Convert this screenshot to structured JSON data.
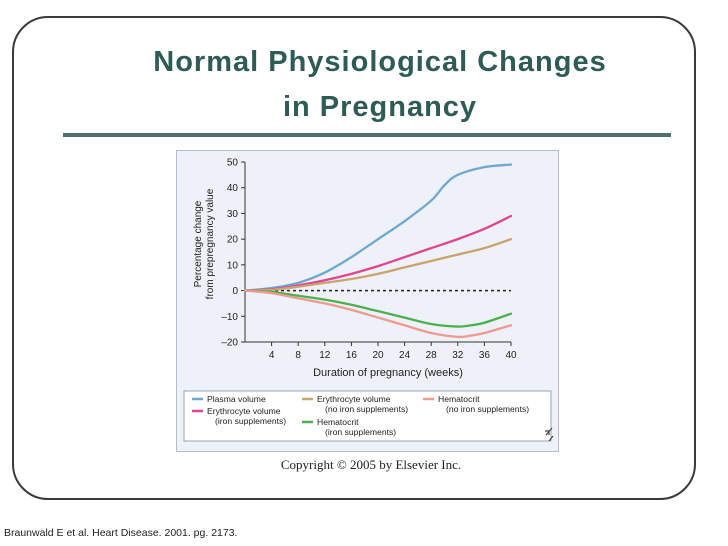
{
  "slide": {
    "title_line1": "Normal Physiological Changes",
    "title_line2": "in Pregnancy",
    "copyright": "Copyright © 2005 by Elsevier Inc.",
    "citation": "Braunwald E et al. Heart Disease. 2001. pg. 2173."
  },
  "chart_data": {
    "type": "line",
    "title": "",
    "xlabel": "Duration of pregnancy (weeks)",
    "ylabel_line1": "Percentage change",
    "ylabel_line2": "from prepregnancy value",
    "xlim": [
      0,
      40
    ],
    "ylim": [
      -20,
      50
    ],
    "xticks": [
      4,
      8,
      12,
      16,
      20,
      24,
      28,
      32,
      36,
      40
    ],
    "xtick_labels": [
      "4",
      "8",
      "12",
      "16",
      "20",
      "24",
      "28",
      "32",
      "36",
      "40"
    ],
    "yticks": [
      50,
      40,
      30,
      20,
      10,
      0,
      -10,
      -20
    ],
    "ytick_labels": [
      "50",
      "40",
      "30",
      "20",
      "10",
      "0",
      "–10",
      "–20"
    ],
    "reference_line": 0,
    "series": [
      {
        "key": "plasma",
        "name": "Plasma volume",
        "color": "#6fa8cf",
        "x": [
          0,
          4,
          8,
          12,
          16,
          20,
          24,
          28,
          30,
          32,
          36,
          40
        ],
        "y": [
          0,
          1,
          3,
          7,
          13,
          20,
          27,
          35,
          41,
          45,
          48,
          49
        ]
      },
      {
        "key": "rbc_iron",
        "name": "Erythrocyte volume",
        "sub": "(iron supplements)",
        "color": "#e0458f",
        "x": [
          0,
          4,
          8,
          12,
          16,
          20,
          24,
          28,
          32,
          36,
          40
        ],
        "y": [
          0,
          0.5,
          2,
          4,
          6.5,
          9.5,
          13,
          16.5,
          20,
          24,
          29
        ]
      },
      {
        "key": "rbc_noiron",
        "name": "Erythrocyte volume",
        "sub": "(no iron supplements)",
        "color": "#c9a46f",
        "x": [
          0,
          4,
          8,
          12,
          16,
          20,
          24,
          28,
          32,
          36,
          40
        ],
        "y": [
          0,
          0.3,
          1.5,
          3,
          4.5,
          6.5,
          9,
          11.5,
          14,
          16.5,
          20
        ]
      },
      {
        "key": "hct_iron",
        "name": "Hematocrit",
        "sub": "(iron supplements)",
        "color": "#4caf50",
        "x": [
          0,
          4,
          8,
          12,
          16,
          20,
          24,
          28,
          32,
          34,
          36,
          40
        ],
        "y": [
          0,
          -0.5,
          -2,
          -3.5,
          -5.5,
          -8,
          -10.5,
          -13,
          -14,
          -13.5,
          -12.5,
          -9
        ]
      },
      {
        "key": "hct_noiron",
        "name": "Hematocrit",
        "sub": "(no iron supplements)",
        "color": "#ef9a8e",
        "x": [
          0,
          4,
          8,
          12,
          16,
          20,
          24,
          28,
          32,
          34,
          36,
          40
        ],
        "y": [
          0,
          -1,
          -3,
          -5,
          -7.5,
          -10.5,
          -13.5,
          -16.5,
          -18,
          -17.5,
          -16.5,
          -13.5
        ]
      }
    ],
    "legend_position": "bottom"
  },
  "icons": {
    "corner_mark": "corner-mark-icon"
  }
}
